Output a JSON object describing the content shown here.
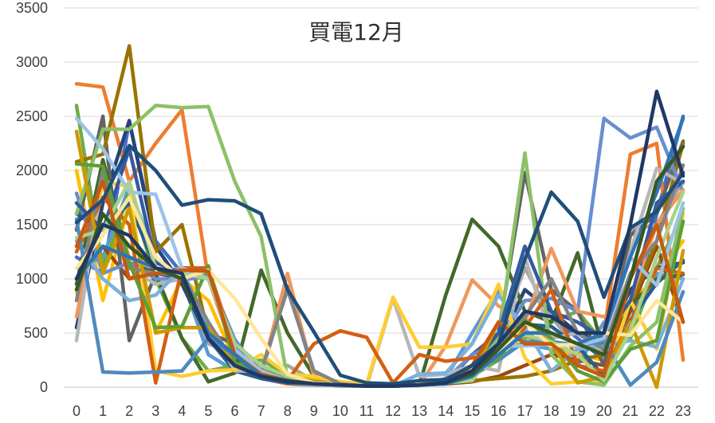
{
  "chart_data": {
    "type": "line",
    "title": "買電12月",
    "xlabel": "",
    "ylabel": "",
    "x": [
      0,
      1,
      2,
      3,
      4,
      5,
      6,
      7,
      8,
      9,
      10,
      11,
      12,
      13,
      14,
      15,
      16,
      17,
      18,
      19,
      20,
      21,
      22,
      23
    ],
    "ylim": [
      0,
      3500
    ],
    "yticks": [
      0,
      500,
      1000,
      1500,
      2000,
      2500,
      3000,
      3500
    ],
    "grid": true,
    "legend": "none",
    "series": [
      {
        "color": "#4472C4",
        "values": [
          1200,
          1050,
          2450,
          1350,
          1050,
          1000,
          350,
          150,
          80,
          40,
          20,
          10,
          10,
          20,
          40,
          150,
          350,
          700,
          650,
          450,
          250,
          550,
          1600,
          2500
        ]
      },
      {
        "color": "#ED7D31",
        "values": [
          2800,
          2770,
          1900,
          2250,
          2560,
          1000,
          300,
          80,
          30,
          20,
          10,
          10,
          10,
          20,
          30,
          100,
          300,
          600,
          400,
          300,
          500,
          2150,
          2250,
          250
        ]
      },
      {
        "color": "#A5A5A5",
        "values": [
          900,
          1300,
          1200,
          1050,
          1100,
          400,
          300,
          150,
          200,
          60,
          30,
          10,
          10,
          20,
          50,
          200,
          450,
          1100,
          650,
          350,
          450,
          1450,
          1500,
          1900
        ]
      },
      {
        "color": "#FFC000",
        "values": [
          2000,
          800,
          1700,
          500,
          1000,
          800,
          250,
          150,
          100,
          80,
          50,
          20,
          10,
          20,
          60,
          200,
          600,
          500,
          350,
          300,
          250,
          800,
          1000,
          1350
        ]
      },
      {
        "color": "#5B9BD5",
        "values": [
          1100,
          1200,
          1850,
          1200,
          1000,
          300,
          150,
          100,
          50,
          30,
          20,
          10,
          10,
          15,
          80,
          500,
          900,
          400,
          350,
          200,
          600,
          500,
          1050,
          1000
        ]
      },
      {
        "color": "#70AD47",
        "values": [
          2600,
          1100,
          1800,
          1000,
          450,
          150,
          200,
          250,
          120,
          50,
          20,
          10,
          10,
          20,
          40,
          100,
          250,
          450,
          600,
          700,
          400,
          450,
          1100,
          1600
        ]
      },
      {
        "color": "#264478",
        "values": [
          550,
          1700,
          2460,
          1300,
          950,
          450,
          200,
          100,
          50,
          30,
          10,
          10,
          10,
          20,
          60,
          150,
          400,
          900,
          700,
          500,
          400,
          900,
          1100,
          1150
        ]
      },
      {
        "color": "#9E480E",
        "values": [
          1000,
          1300,
          1000,
          1100,
          1000,
          500,
          250,
          150,
          80,
          40,
          20,
          10,
          10,
          20,
          30,
          50,
          100,
          200,
          300,
          250,
          200,
          700,
          1300,
          600
        ]
      },
      {
        "color": "#636363",
        "values": [
          1450,
          2500,
          430,
          1050,
          1000,
          500,
          400,
          100,
          60,
          30,
          20,
          10,
          10,
          20,
          40,
          300,
          500,
          1980,
          900,
          700,
          200,
          1400,
          1600,
          2270
        ]
      },
      {
        "color": "#997300",
        "values": [
          2080,
          2150,
          3150,
          1250,
          1500,
          500,
          250,
          200,
          100,
          50,
          20,
          10,
          10,
          20,
          40,
          60,
          80,
          100,
          150,
          250,
          300,
          750,
          1350,
          2250
        ]
      },
      {
        "color": "#255E91",
        "values": [
          1600,
          1450,
          1700,
          1100,
          1000,
          450,
          150,
          80,
          40,
          20,
          10,
          10,
          10,
          20,
          50,
          300,
          450,
          580,
          560,
          380,
          100,
          620,
          960,
          1170
        ]
      },
      {
        "color": "#43682B",
        "values": [
          950,
          2100,
          1150,
          1050,
          450,
          50,
          130,
          1080,
          500,
          100,
          30,
          10,
          10,
          20,
          850,
          1550,
          1300,
          700,
          600,
          1240,
          300,
          750,
          1000,
          1040
        ]
      },
      {
        "color": "#698ED0",
        "values": [
          1790,
          1050,
          1150,
          1000,
          990,
          1020,
          440,
          120,
          930,
          120,
          30,
          10,
          10,
          20,
          70,
          300,
          410,
          800,
          820,
          700,
          2480,
          2300,
          2400,
          1800
        ]
      },
      {
        "color": "#F1975A",
        "values": [
          650,
          1900,
          1200,
          1100,
          1050,
          1000,
          400,
          120,
          1050,
          100,
          30,
          10,
          10,
          20,
          380,
          990,
          750,
          600,
          1280,
          700,
          650,
          800,
          1500,
          1820
        ]
      },
      {
        "color": "#B7B7B7",
        "values": [
          430,
          1950,
          1100,
          950,
          1000,
          600,
          150,
          150,
          50,
          20,
          10,
          10,
          820,
          100,
          120,
          200,
          150,
          1200,
          450,
          500,
          300,
          1250,
          2020,
          1880
        ]
      },
      {
        "color": "#FFCD33",
        "values": [
          870,
          1900,
          1850,
          150,
          100,
          150,
          160,
          300,
          120,
          100,
          50,
          30,
          830,
          370,
          370,
          400,
          950,
          270,
          30,
          50,
          50,
          800,
          350,
          1600
        ]
      },
      {
        "color": "#7CAFDD",
        "values": [
          1350,
          1000,
          800,
          850,
          1100,
          500,
          200,
          150,
          80,
          40,
          20,
          10,
          10,
          120,
          130,
          400,
          850,
          550,
          150,
          350,
          380,
          430,
          370,
          1000
        ]
      },
      {
        "color": "#8CC168",
        "values": [
          1600,
          2380,
          2380,
          2600,
          2580,
          2590,
          1900,
          1390,
          80,
          40,
          20,
          10,
          10,
          20,
          50,
          150,
          450,
          2160,
          300,
          50,
          20,
          380,
          600,
          1650
        ]
      },
      {
        "color": "#335AA1",
        "values": [
          1700,
          1450,
          2200,
          1150,
          1050,
          1000,
          380,
          100,
          60,
          30,
          20,
          10,
          10,
          20,
          40,
          200,
          500,
          1300,
          700,
          600,
          450,
          800,
          1700,
          1900
        ]
      },
      {
        "color": "#D26012",
        "values": [
          1250,
          1750,
          1500,
          40,
          1100,
          1100,
          350,
          100,
          60,
          400,
          520,
          460,
          40,
          300,
          240,
          270,
          300,
          550,
          900,
          200,
          150,
          600,
          1100,
          1050
        ]
      },
      {
        "color": "#848484",
        "values": [
          800,
          2000,
          1100,
          1050,
          1050,
          600,
          220,
          150,
          900,
          150,
          30,
          10,
          10,
          20,
          50,
          200,
          400,
          650,
          1000,
          500,
          350,
          1050,
          1350,
          2050
        ]
      },
      {
        "color": "#CC9A00",
        "values": [
          2360,
          1050,
          1650,
          500,
          550,
          550,
          200,
          120,
          80,
          40,
          20,
          10,
          10,
          20,
          40,
          100,
          600,
          470,
          400,
          40,
          100,
          600,
          0,
          1260
        ]
      },
      {
        "color": "#4E8ABE",
        "values": [
          1550,
          140,
          130,
          140,
          150,
          450,
          300,
          150,
          70,
          30,
          20,
          10,
          10,
          20,
          40,
          200,
          250,
          420,
          420,
          390,
          420,
          20,
          230,
          880
        ]
      },
      {
        "color": "#5E9E37",
        "values": [
          2060,
          2040,
          1150,
          550,
          560,
          1120,
          220,
          150,
          100,
          40,
          20,
          10,
          10,
          20,
          40,
          200,
          260,
          620,
          450,
          150,
          50,
          350,
          430,
          1530
        ]
      },
      {
        "color": "#9DC3E6",
        "values": [
          2480,
          2200,
          1800,
          1780,
          1100,
          1000,
          350,
          150,
          60,
          30,
          20,
          10,
          10,
          20,
          40,
          130,
          380,
          380,
          400,
          380,
          450,
          1200,
          940,
          1700
        ]
      },
      {
        "color": "#A9D18E",
        "values": [
          1380,
          1450,
          1900,
          1100,
          1050,
          1000,
          400,
          200,
          100,
          40,
          20,
          10,
          10,
          20,
          40,
          60,
          380,
          480,
          420,
          300,
          60,
          520,
          1200,
          1800
        ]
      },
      {
        "color": "#FFE699",
        "values": [
          1100,
          1400,
          1750,
          1200,
          1000,
          1080,
          820,
          450,
          120,
          40,
          20,
          10,
          10,
          20,
          40,
          100,
          300,
          600,
          380,
          400,
          500,
          480,
          800,
          600
        ]
      },
      {
        "color": "#C55A11",
        "values": [
          1300,
          1900,
          1000,
          1050,
          1080,
          1070,
          300,
          120,
          60,
          30,
          20,
          10,
          10,
          20,
          40,
          200,
          600,
          400,
          400,
          200,
          100,
          1000,
          1500,
          600
        ]
      },
      {
        "color": "#1F4E79",
        "values": [
          1520,
          1730,
          2230,
          2000,
          1680,
          1730,
          1720,
          1600,
          900,
          510,
          110,
          40,
          30,
          60,
          70,
          200,
          400,
          1180,
          1800,
          1530,
          830,
          1470,
          1620,
          1980
        ]
      },
      {
        "color": "#2E75B6",
        "values": [
          1000,
          1300,
          1200,
          1100,
          1000,
          500,
          300,
          100,
          50,
          30,
          20,
          10,
          10,
          20,
          30,
          100,
          300,
          500,
          500,
          400,
          500,
          1200,
          1800,
          2480
        ]
      },
      {
        "color": "#385723",
        "values": [
          900,
          1600,
          1300,
          1100,
          1000,
          450,
          200,
          100,
          60,
          30,
          20,
          10,
          10,
          20,
          40,
          120,
          350,
          600,
          500,
          400,
          300,
          1000,
          1900,
          2220
        ]
      },
      {
        "color": "#203864",
        "values": [
          1000,
          1500,
          1400,
          1100,
          1050,
          450,
          200,
          100,
          50,
          30,
          20,
          10,
          10,
          20,
          40,
          150,
          400,
          700,
          650,
          500,
          500,
          1500,
          2730,
          1950
        ]
      }
    ]
  }
}
